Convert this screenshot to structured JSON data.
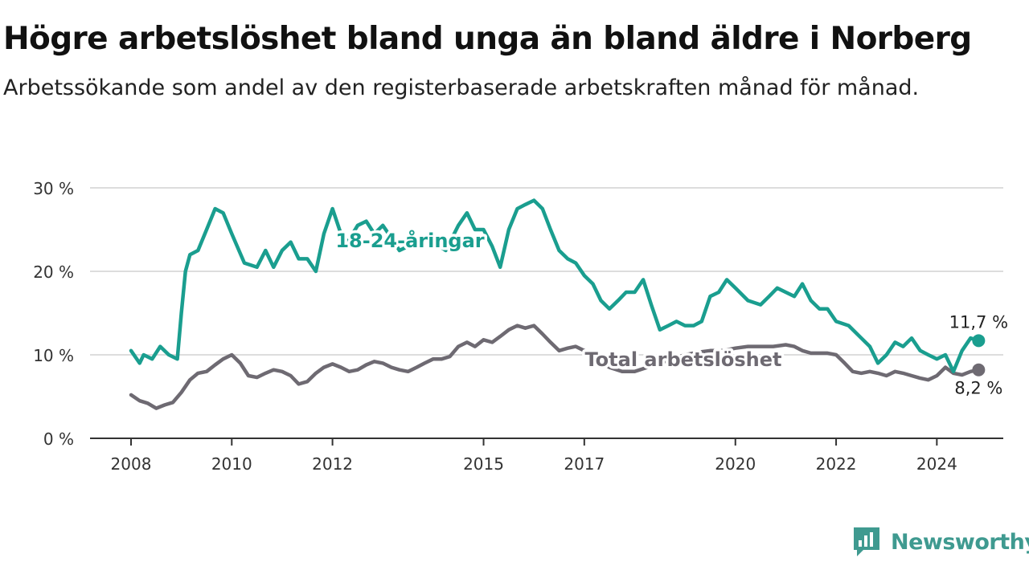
{
  "title": "Högre arbetslöshet bland unga än bland äldre i Norberg",
  "subtitle": "Arbetssökande som andel av den registerbaserade arbetskraften månad för månad.",
  "brand": {
    "name": "Newsworthy",
    "icon": "newsworthy-logo-icon",
    "color": "#3f9a90"
  },
  "chart_data": {
    "type": "line",
    "title": "Högre arbetslöshet bland unga än bland äldre i Norberg",
    "subtitle": "Arbetssökande som andel av den registerbaserade arbetskraften månad för månad.",
    "xlabel": "",
    "ylabel": "",
    "xlim": [
      2008,
      2025
    ],
    "ylim": [
      0,
      30
    ],
    "yticks": [
      0,
      10,
      20,
      30
    ],
    "ytick_labels": [
      "0 %",
      "10 %",
      "20 %",
      "30 %"
    ],
    "xticks": [
      2008,
      2010,
      2012,
      2015,
      2017,
      2020,
      2022,
      2024
    ],
    "xtick_labels": [
      "2008",
      "2010",
      "2012",
      "2015",
      "2017",
      "2020",
      "2022",
      "2024"
    ],
    "grid": true,
    "legend": "none",
    "series": [
      {
        "name": "18-24-åringar",
        "color": "#1a9e8f",
        "end_label": "11,7 %",
        "x": [
          2008.0,
          2008.17,
          2008.25,
          2008.42,
          2008.58,
          2008.75,
          2008.92,
          2009.0,
          2009.08,
          2009.17,
          2009.33,
          2009.5,
          2009.67,
          2009.83,
          2010.0,
          2010.25,
          2010.5,
          2010.67,
          2010.83,
          2011.0,
          2011.17,
          2011.33,
          2011.5,
          2011.67,
          2011.83,
          2012.0,
          2012.25,
          2012.5,
          2012.67,
          2012.83,
          2013.0,
          2013.17,
          2013.33,
          2013.5,
          2013.67,
          2013.83,
          2014.0,
          2014.25,
          2014.5,
          2014.67,
          2014.83,
          2015.0,
          2015.17,
          2015.33,
          2015.5,
          2015.67,
          2015.83,
          2016.0,
          2016.17,
          2016.33,
          2016.5,
          2016.67,
          2016.83,
          2017.0,
          2017.17,
          2017.33,
          2017.5,
          2017.67,
          2017.83,
          2018.0,
          2018.17,
          2018.33,
          2018.5,
          2018.67,
          2018.83,
          2019.0,
          2019.17,
          2019.33,
          2019.5,
          2019.67,
          2019.83,
          2020.0,
          2020.25,
          2020.5,
          2020.67,
          2020.83,
          2021.0,
          2021.17,
          2021.33,
          2021.5,
          2021.67,
          2021.83,
          2022.0,
          2022.25,
          2022.5,
          2022.67,
          2022.83,
          2023.0,
          2023.17,
          2023.33,
          2023.5,
          2023.67,
          2023.83,
          2024.0,
          2024.17,
          2024.33,
          2024.5,
          2024.67,
          2024.83
        ],
        "values": [
          10.5,
          9.0,
          10.0,
          9.5,
          11.0,
          10.0,
          9.5,
          15.0,
          20.0,
          22.0,
          22.5,
          25.0,
          27.5,
          27.0,
          24.5,
          21.0,
          20.5,
          22.5,
          20.5,
          22.5,
          23.5,
          21.5,
          21.5,
          20.0,
          24.5,
          27.5,
          23.0,
          25.5,
          26.0,
          24.5,
          25.5,
          24.0,
          22.5,
          23.0,
          23.0,
          24.0,
          23.5,
          22.5,
          25.5,
          27.0,
          25.0,
          25.0,
          23.0,
          20.5,
          25.0,
          27.5,
          28.0,
          28.5,
          27.5,
          25.0,
          22.5,
          21.5,
          21.0,
          19.5,
          18.5,
          16.5,
          15.5,
          16.5,
          17.5,
          17.5,
          19.0,
          16.0,
          13.0,
          13.5,
          14.0,
          13.5,
          13.5,
          14.0,
          17.0,
          17.5,
          19.0,
          18.0,
          16.5,
          16.0,
          17.0,
          18.0,
          17.5,
          17.0,
          18.5,
          16.5,
          15.5,
          15.5,
          14.0,
          13.5,
          12.0,
          11.0,
          9.0,
          10.0,
          11.5,
          11.0,
          12.0,
          10.5,
          10.0,
          9.5,
          10.0,
          8.0,
          10.5,
          12.0,
          11.7
        ]
      },
      {
        "name": "Total arbetslöshet",
        "color": "#6e6a72",
        "end_label": "8,2 %",
        "x": [
          2008.0,
          2008.17,
          2008.33,
          2008.5,
          2008.67,
          2008.83,
          2009.0,
          2009.17,
          2009.33,
          2009.5,
          2009.67,
          2009.83,
          2010.0,
          2010.17,
          2010.33,
          2010.5,
          2010.67,
          2010.83,
          2011.0,
          2011.17,
          2011.33,
          2011.5,
          2011.67,
          2011.83,
          2012.0,
          2012.17,
          2012.33,
          2012.5,
          2012.67,
          2012.83,
          2013.0,
          2013.17,
          2013.33,
          2013.5,
          2013.67,
          2013.83,
          2014.0,
          2014.17,
          2014.33,
          2014.5,
          2014.67,
          2014.83,
          2015.0,
          2015.17,
          2015.33,
          2015.5,
          2015.67,
          2015.83,
          2016.0,
          2016.17,
          2016.33,
          2016.5,
          2016.67,
          2016.83,
          2017.0,
          2017.25,
          2017.5,
          2017.75,
          2018.0,
          2018.25,
          2018.5,
          2018.75,
          2019.0,
          2019.25,
          2019.5,
          2019.75,
          2020.0,
          2020.25,
          2020.5,
          2020.75,
          2021.0,
          2021.17,
          2021.33,
          2021.5,
          2021.67,
          2021.83,
          2022.0,
          2022.17,
          2022.33,
          2022.5,
          2022.67,
          2022.83,
          2023.0,
          2023.17,
          2023.33,
          2023.5,
          2023.67,
          2023.83,
          2024.0,
          2024.17,
          2024.33,
          2024.5,
          2024.67,
          2024.83
        ],
        "values": [
          5.2,
          4.5,
          4.2,
          3.6,
          4.0,
          4.3,
          5.5,
          7.0,
          7.8,
          8.0,
          8.8,
          9.5,
          10.0,
          9.0,
          7.5,
          7.3,
          7.8,
          8.2,
          8.0,
          7.5,
          6.5,
          6.8,
          7.8,
          8.5,
          8.9,
          8.5,
          8.0,
          8.2,
          8.8,
          9.2,
          9.0,
          8.5,
          8.2,
          8.0,
          8.5,
          9.0,
          9.5,
          9.5,
          9.8,
          11.0,
          11.5,
          11.0,
          11.8,
          11.5,
          12.2,
          13.0,
          13.5,
          13.2,
          13.5,
          12.5,
          11.5,
          10.5,
          10.8,
          11.0,
          10.5,
          9.5,
          8.5,
          8.0,
          8.0,
          8.5,
          9.0,
          9.5,
          10.0,
          10.3,
          10.5,
          10.5,
          10.8,
          11.0,
          11.0,
          11.0,
          11.2,
          11.0,
          10.5,
          10.2,
          10.2,
          10.2,
          10.0,
          9.0,
          8.0,
          7.8,
          8.0,
          7.8,
          7.5,
          8.0,
          7.8,
          7.5,
          7.2,
          7.0,
          7.5,
          8.5,
          7.8,
          7.6,
          8.0,
          8.2
        ]
      }
    ]
  }
}
